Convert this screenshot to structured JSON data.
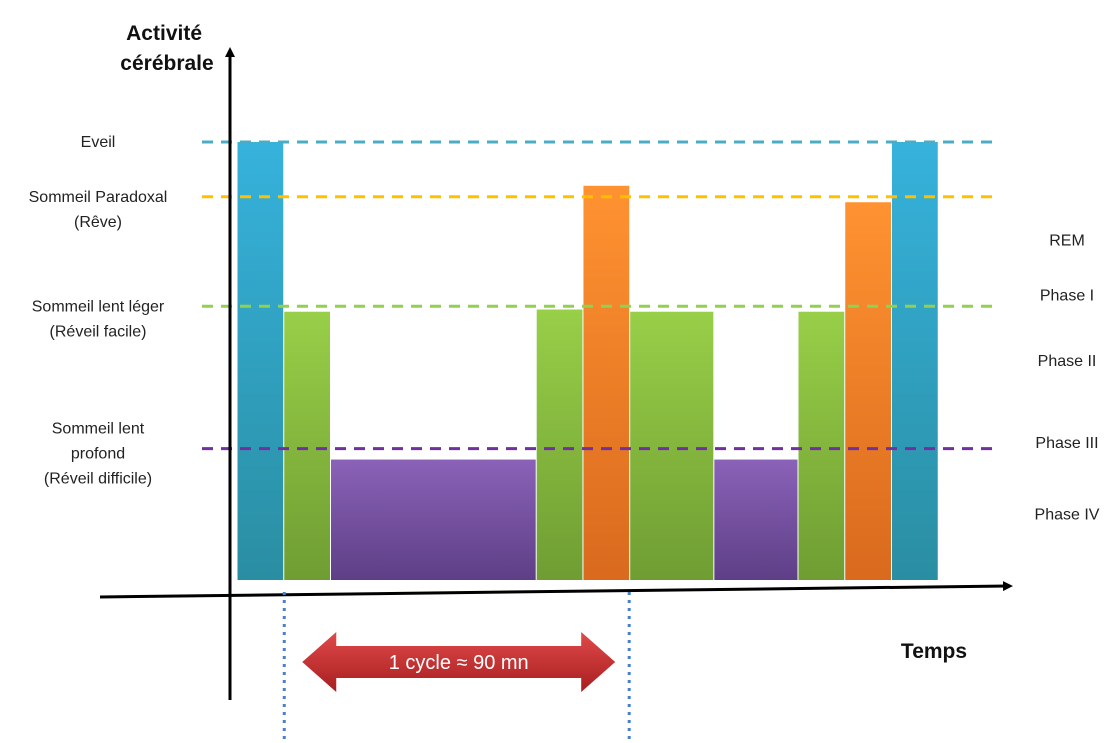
{
  "chart_data": {
    "type": "bar",
    "title": "",
    "ylabel": [
      "Activité",
      "cérébrale"
    ],
    "xlabel": "Temps",
    "grid": false,
    "levels": [
      {
        "key": "eveil",
        "lines": [
          "Eveil"
        ],
        "color": "#4bacc6",
        "value": 4
      },
      {
        "key": "paradoxal",
        "lines": [
          "Sommeil Paradoxal",
          "(Rêve)"
        ],
        "color": "#ffc000",
        "value": 3.5
      },
      {
        "key": "leger",
        "lines": [
          "Sommeil lent léger",
          "(Réveil facile)"
        ],
        "color": "#92d050",
        "value": 2.5
      },
      {
        "key": "profond",
        "lines": [
          "Sommeil lent",
          "profond",
          "(Réveil difficile)"
        ],
        "color": "#7030a0",
        "value": 1.2
      }
    ],
    "phases": [
      {
        "label": "REM",
        "value": 3.1
      },
      {
        "label": "Phase I",
        "value": 2.6
      },
      {
        "label": "Phase II",
        "value": 2.0
      },
      {
        "label": "Phase III",
        "value": 1.25
      },
      {
        "label": "Phase IV",
        "value": 0.6
      }
    ],
    "series": [
      {
        "stage": "eveil",
        "start": 0,
        "end": 5,
        "value": 4.0
      },
      {
        "stage": "leger",
        "start": 5,
        "end": 10,
        "value": 2.45
      },
      {
        "stage": "profond",
        "start": 10,
        "end": 32,
        "value": 1.1
      },
      {
        "stage": "leger",
        "start": 32,
        "end": 37,
        "value": 2.47
      },
      {
        "stage": "paradoxal",
        "start": 37,
        "end": 42,
        "value": 3.6
      },
      {
        "stage": "leger",
        "start": 42,
        "end": 51,
        "value": 2.45
      },
      {
        "stage": "profond",
        "start": 51,
        "end": 60,
        "value": 1.1
      },
      {
        "stage": "leger",
        "start": 60,
        "end": 65,
        "value": 2.45
      },
      {
        "stage": "paradoxal",
        "start": 65,
        "end": 70,
        "value": 3.45
      },
      {
        "stage": "eveil",
        "start": 70,
        "end": 75,
        "value": 4.0
      }
    ],
    "cycle": {
      "label": "1 cycle ≈ 90 mn",
      "start": 5,
      "end": 42
    }
  },
  "colors": {
    "eveil": "#30a8cc",
    "paradoxal": "#f7882a",
    "leger": "#8dc63f",
    "profond": "#7a57a5",
    "cycle_arrow": "#c0292b",
    "cycle_marker": "#4a7fc9"
  }
}
